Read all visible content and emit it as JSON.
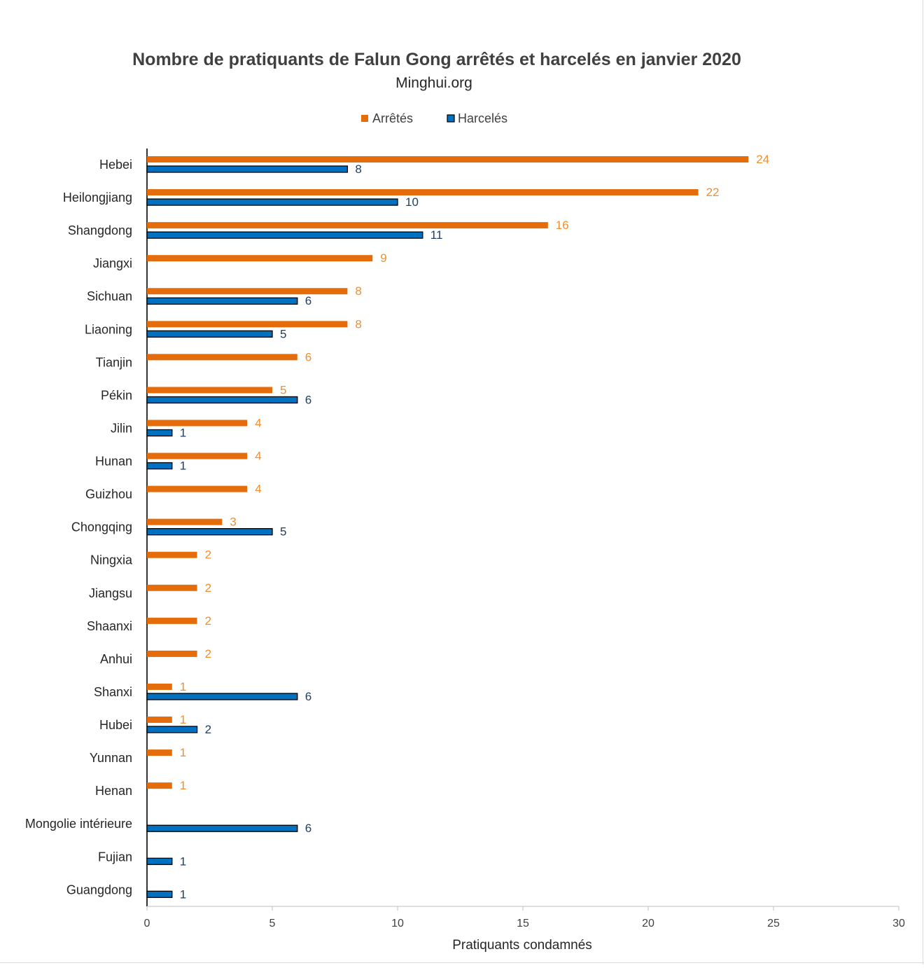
{
  "chart_data": {
    "type": "bar",
    "orientation": "horizontal",
    "title": "Nombre de pratiquants de Falun Gong arrêtés et harcelés en janvier 2020",
    "subtitle": "Minghui.org",
    "xlabel": "Pratiquants condamnés",
    "ylabel": "",
    "xlim": [
      0,
      30
    ],
    "x_ticks": [
      0,
      5,
      10,
      15,
      20,
      25,
      30
    ],
    "grid": false,
    "legend_position": "top-center",
    "categories": [
      "Hebei",
      "Heilongjiang",
      "Shangdong",
      "Jiangxi",
      "Sichuan",
      "Liaoning",
      "Tianjin",
      "Pékin",
      "Jilin",
      "Hunan",
      "Guizhou",
      "Chongqing",
      "Ningxia",
      "Jiangsu",
      "Shaanxi",
      "Anhui",
      "Shanxi",
      "Hubei",
      "Yunnan",
      "Henan",
      "Mongolie intérieure",
      "Fujian",
      "Guangdong"
    ],
    "series": [
      {
        "name": "Arrêtés",
        "color": "#E46C0A",
        "label_color": "#F28E30",
        "values": [
          24,
          22,
          16,
          9,
          8,
          8,
          6,
          5,
          4,
          4,
          4,
          3,
          2,
          2,
          2,
          2,
          1,
          1,
          1,
          1,
          null,
          null,
          null
        ]
      },
      {
        "name": "Harcelés",
        "color": "#0070C0",
        "label_color": "#1F3F66",
        "values": [
          8,
          10,
          11,
          null,
          6,
          5,
          null,
          6,
          1,
          1,
          null,
          5,
          null,
          null,
          null,
          null,
          6,
          2,
          null,
          null,
          6,
          1,
          1
        ]
      }
    ]
  }
}
